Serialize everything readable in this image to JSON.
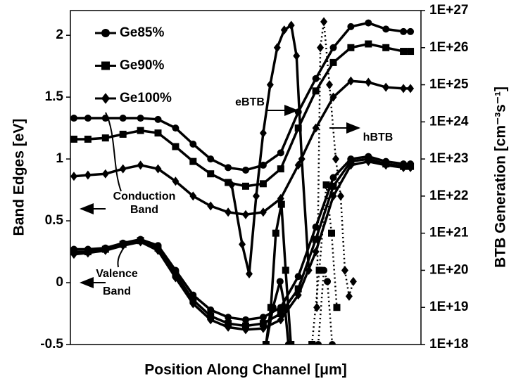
{
  "chart_data": {
    "type": "line",
    "xlabel": "Position Along Channel [μm]",
    "ylabel": "Band Edges [eV]",
    "y2label": "BTB Generation [cm⁻³s⁻¹]",
    "xlim": [
      0,
      100
    ],
    "ylim": [
      -0.5,
      2.2
    ],
    "yticks": [
      -0.5,
      0,
      0.5,
      1,
      1.5,
      2
    ],
    "y2scale": "log",
    "y2lim": [
      1e+18,
      1e+27
    ],
    "y2ticks": [
      {
        "value": 1e+18,
        "label": "1E+18"
      },
      {
        "value": 1e+19,
        "label": "1E+19"
      },
      {
        "value": 1e+20,
        "label": "1E+20"
      },
      {
        "value": 1e+21,
        "label": "1E+21"
      },
      {
        "value": 1e+22,
        "label": "1E+22"
      },
      {
        "value": 1e+23,
        "label": "1E+23"
      },
      {
        "value": 1e+24,
        "label": "1E+24"
      },
      {
        "value": 1e+25,
        "label": "1E+25"
      },
      {
        "value": 1e+26,
        "label": "1E+26"
      },
      {
        "value": 1e+27,
        "label": "1E+27"
      }
    ],
    "legend": "upper left",
    "x": [
      1,
      5,
      10,
      15,
      20,
      25,
      30,
      35,
      40,
      45,
      50,
      55,
      60,
      65,
      70,
      75,
      80,
      85,
      90,
      95,
      97
    ],
    "annotations": [
      "Conduction",
      "Band",
      "Valence",
      "Band",
      "eBTB",
      "hBTB"
    ],
    "series": [
      {
        "name": "Ge85%",
        "color": "#000000",
        "marker": "circle",
        "conduction": {
          "values": [
            1.33,
            1.33,
            1.33,
            1.33,
            1.33,
            1.32,
            1.25,
            1.12,
            1.0,
            0.93,
            0.91,
            0.95,
            1.05,
            1.38,
            1.65,
            1.9,
            2.07,
            2.1,
            2.05,
            2.03,
            2.03
          ]
        },
        "valence": {
          "values": [
            0.27,
            0.27,
            0.28,
            0.32,
            0.35,
            0.3,
            0.1,
            -0.1,
            -0.22,
            -0.28,
            -0.3,
            -0.28,
            -0.2,
            0.05,
            0.45,
            0.85,
            1.0,
            1.02,
            0.98,
            0.96,
            0.96
          ]
        },
        "eBTB": {
          "x": [
            55.8,
            57.8,
            59.8,
            61.2,
            62.2
          ],
          "values": [
            1e+18,
            1e+19,
            5e+19,
            1e+19,
            1e+18
          ],
          "linestyle": "solid"
        },
        "hBTB": {
          "x": [
            70.7,
            72.3,
            73.3,
            74.7
          ],
          "values": [
            1e+18,
            1e+20,
            5e+19,
            1e+18
          ],
          "linestyle": "dotted"
        }
      },
      {
        "name": "Ge90%",
        "color": "#000000",
        "marker": "square",
        "conduction": {
          "values": [
            1.16,
            1.16,
            1.17,
            1.2,
            1.23,
            1.21,
            1.1,
            0.98,
            0.88,
            0.81,
            0.78,
            0.8,
            0.92,
            1.25,
            1.55,
            1.78,
            1.9,
            1.93,
            1.9,
            1.87,
            1.87
          ]
        },
        "valence": {
          "values": [
            0.25,
            0.25,
            0.27,
            0.31,
            0.34,
            0.28,
            0.07,
            -0.14,
            -0.27,
            -0.33,
            -0.35,
            -0.33,
            -0.25,
            -0.05,
            0.35,
            0.78,
            0.98,
            1.0,
            0.96,
            0.94,
            0.94
          ]
        },
        "eBTB": {
          "x": [
            55.8,
            57.2,
            58.6,
            60.2,
            61.4,
            62.9
          ],
          "values": [
            1e+18,
            1e+19,
            1e+21,
            6e+21,
            1e+20,
            1e+18
          ],
          "linestyle": "solid"
        },
        "hBTB": {
          "x": [
            68.9,
            71,
            73,
            74.5,
            76
          ],
          "values": [
            1e+18,
            1e+20,
            2e+22,
            1e+21,
            1e+19
          ],
          "linestyle": "dotted"
        }
      },
      {
        "name": "Ge100%",
        "color": "#000000",
        "marker": "diamond",
        "conduction": {
          "values": [
            0.86,
            0.87,
            0.88,
            0.92,
            0.95,
            0.92,
            0.82,
            0.7,
            0.62,
            0.57,
            0.55,
            0.57,
            0.68,
            0.95,
            1.25,
            1.5,
            1.63,
            1.62,
            1.58,
            1.57,
            1.57
          ]
        },
        "valence": {
          "values": [
            0.23,
            0.24,
            0.26,
            0.3,
            0.33,
            0.26,
            0.04,
            -0.17,
            -0.3,
            -0.36,
            -0.38,
            -0.37,
            -0.3,
            -0.1,
            0.25,
            0.7,
            0.95,
            0.98,
            0.95,
            0.93,
            0.93
          ]
        },
        "eBTB": {
          "x": [
            46,
            49,
            51,
            53,
            55,
            57,
            59,
            61,
            63,
            64.5,
            66,
            68
          ],
          "values": [
            2e+22,
            5e+20,
            8e+19,
            1e+22,
            5e+23,
            1e+25,
            1e+26,
            3e+26,
            4e+26,
            6e+25,
            1e+23,
            1e+20
          ],
          "linestyle": "solid"
        },
        "hBTB": {
          "x": [
            70.3,
            71.3,
            72.3,
            73.9,
            75.7,
            77.1,
            78.3,
            79.5,
            80.7
          ],
          "values": [
            1e+19,
            1e+26,
            5e+26,
            1e+25,
            1e+23,
            1e+22,
            1e+20,
            2e+19,
            5e+19
          ],
          "linestyle": "dotted"
        }
      }
    ]
  }
}
